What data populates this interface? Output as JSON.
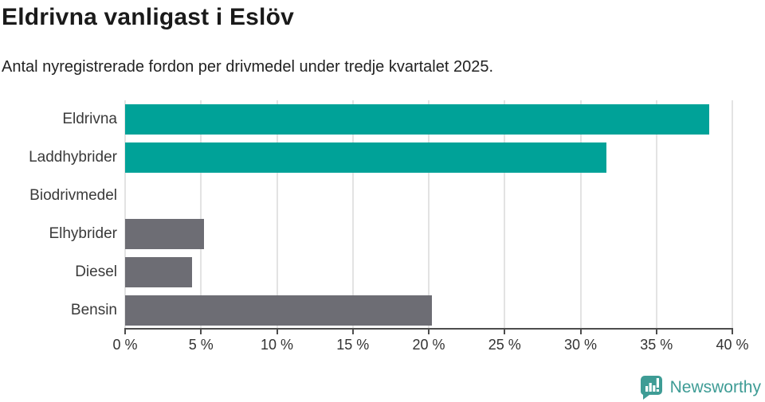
{
  "header": {
    "title": "Eldrivna vanligast i Eslöv",
    "subtitle": "Antal nyregistrerade fordon per drivmedel under tredje kvartalet 2025."
  },
  "chart_data": {
    "type": "bar",
    "orientation": "horizontal",
    "title": "Eldrivna vanligast i Eslöv",
    "subtitle": "Antal nyregistrerade fordon per drivmedel under tredje kvartalet 2025.",
    "categories": [
      "Eldrivna",
      "Laddhybrider",
      "Biodrivmedel",
      "Elhybrider",
      "Diesel",
      "Bensin"
    ],
    "values": [
      38.5,
      31.7,
      0,
      5.2,
      4.4,
      20.2
    ],
    "unit": "%",
    "bar_colors": [
      "#00a298",
      "#00a298",
      "#6d6d74",
      "#6d6d74",
      "#6d6d74",
      "#6d6d74"
    ],
    "xlabel": "",
    "ylabel": "",
    "xlim": [
      0,
      40
    ],
    "xticks": [
      0,
      5,
      10,
      15,
      20,
      25,
      30,
      35,
      40
    ],
    "xtick_labels": [
      "0 %",
      "5 %",
      "10 %",
      "15 %",
      "20 %",
      "25 %",
      "30 %",
      "35 %",
      "40 %"
    ],
    "grid": true,
    "legend": false
  },
  "colors": {
    "highlight": "#00a298",
    "neutral": "#6d6d74",
    "gridline": "#e3e3e3",
    "axis": "#4d4d4d",
    "brand_teal": "#3e9c95"
  },
  "footer": {
    "brand": "Newsworthy",
    "logo_icon": "bar-chart-speech-bubble-icon"
  }
}
